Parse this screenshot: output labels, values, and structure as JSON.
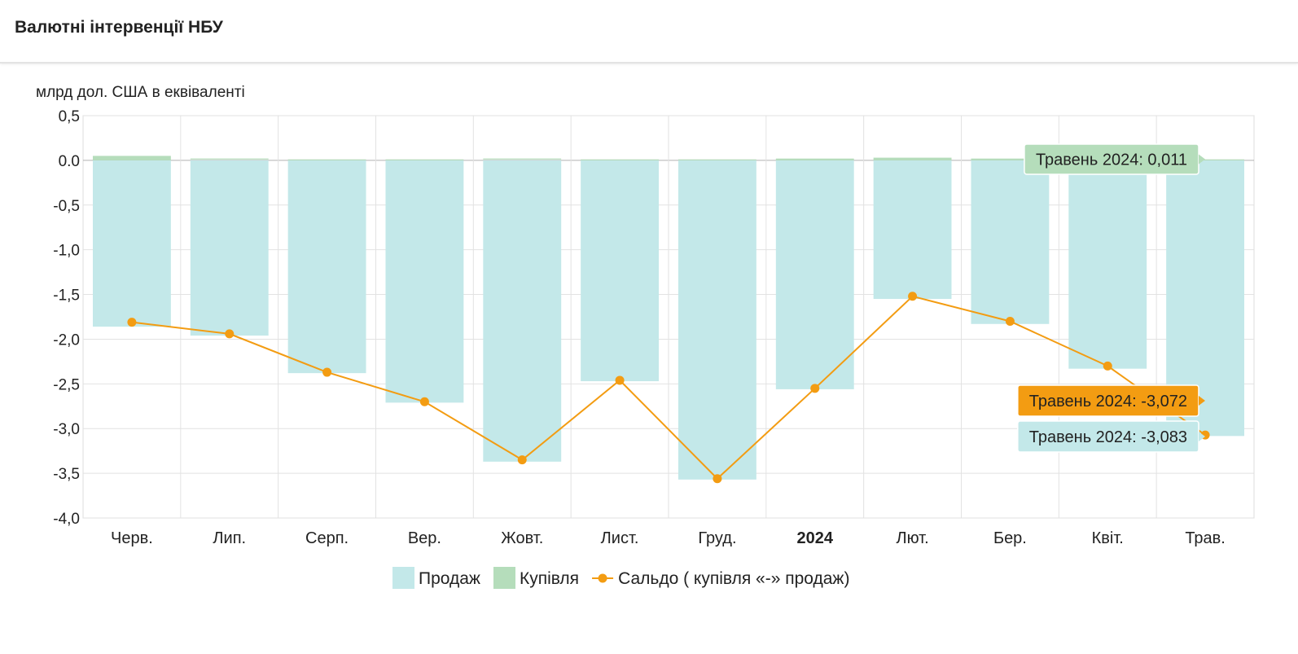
{
  "header": {
    "title": "Валютні інтервенції НБУ"
  },
  "chart_data": {
    "type": "bar",
    "ylabel": "млрд дол. США в еквіваленті",
    "ylim": [
      -4.0,
      0.5
    ],
    "yticks": [
      "0,5",
      "0.0",
      "-0,5",
      "-1,0",
      "-1,5",
      "-2,0",
      "-2,5",
      "-3,0",
      "-3,5",
      "-4,0"
    ],
    "ytick_values": [
      0.5,
      0.0,
      -0.5,
      -1.0,
      -1.5,
      -2.0,
      -2.5,
      -3.0,
      -3.5,
      -4.0
    ],
    "categories": [
      "Черв.",
      "Лип.",
      "Серп.",
      "Вер.",
      "Жовт.",
      "Лист.",
      "Груд.",
      "2024",
      "Лют.",
      "Бер.",
      "Квіт.",
      "Трав."
    ],
    "bold_categories": [
      "2024"
    ],
    "grid": true,
    "legend_position": "bottom",
    "series": [
      {
        "name": "Продаж",
        "type": "bar",
        "color": "#c3e8e9",
        "values": [
          -1.86,
          -1.96,
          -2.38,
          -2.71,
          -3.37,
          -2.47,
          -3.57,
          -2.56,
          -1.55,
          -1.83,
          -2.33,
          -3.083
        ]
      },
      {
        "name": "Купівля",
        "type": "bar",
        "color": "#b5ddbb",
        "values": [
          0.05,
          0.01,
          0.0,
          0.0,
          0.01,
          0.0,
          0.0,
          0.02,
          0.03,
          0.02,
          0.0,
          0.011
        ]
      },
      {
        "name": "Сальдо ( купівля «-» продаж)",
        "type": "line",
        "color": "#f39c12",
        "values": [
          -1.81,
          -1.94,
          -2.37,
          -2.7,
          -3.35,
          -2.46,
          -3.56,
          -2.55,
          -1.52,
          -1.8,
          -2.3,
          -3.072
        ]
      }
    ],
    "tooltips": [
      {
        "text": "Травень 2024: 0,011",
        "series": "Купівля",
        "bg": "#b5ddbb",
        "fg": "#222222"
      },
      {
        "text": "Травень 2024: -3,072",
        "series": "Сальдо ( купівля «-» продаж)",
        "bg": "#f39c12",
        "fg": "#222222"
      },
      {
        "text": "Травень 2024: -3,083",
        "series": "Продаж",
        "bg": "#c3e8e9",
        "fg": "#222222"
      }
    ]
  }
}
